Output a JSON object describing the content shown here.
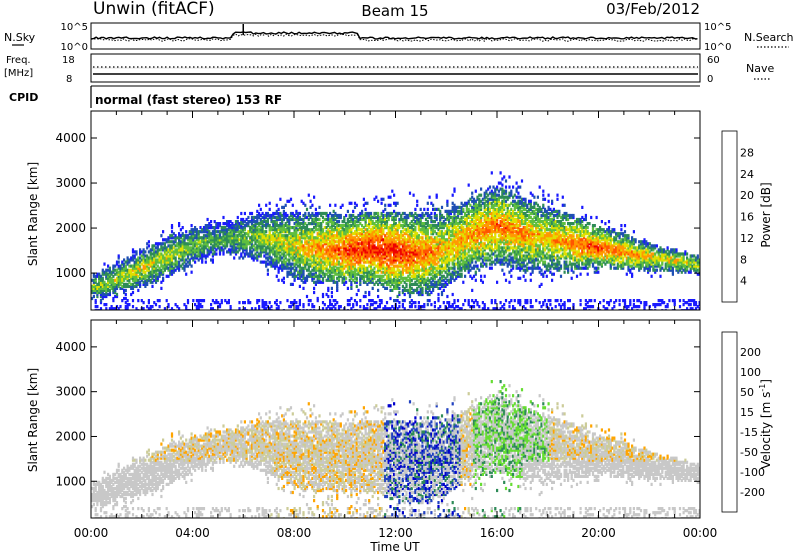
{
  "header": {
    "station": "Unwin (fitACF)",
    "beam": "Beam 15",
    "date": "03/Feb/2012"
  },
  "top_panels": {
    "nsky_label": "N.Sky",
    "nsearch_label": "N.Search",
    "noise_ticks": [
      "10^5",
      "10^0"
    ],
    "freq_label_1": "Freq.",
    "freq_label_2": "[MHz]",
    "freq_ticks": [
      "18",
      "8"
    ],
    "nave_label": "Nave",
    "nave_ticks": [
      "60",
      "0"
    ],
    "cpid_label": "CPID",
    "cpid_text": "normal (fast stereo) 153 RF"
  },
  "colors": {
    "power_scale": [
      "#1a1aff",
      "#1f4fb4",
      "#2e8b57",
      "#5fbf3f",
      "#e0e000",
      "#ff9900",
      "#ff5500",
      "#ee0000"
    ],
    "velocity_scale": [
      "#ff0000",
      "#ff6600",
      "#ffa500",
      "#cccc99",
      "#c8c8c8",
      "#66dd33",
      "#2e8b57",
      "#2040c0",
      "#0000cc"
    ]
  },
  "chart_data": [
    {
      "type": "heatmap",
      "panel": "power",
      "ylabel": "Slant Range [km]",
      "ylim": [
        180,
        4600
      ],
      "yticks": [
        1000,
        2000,
        3000,
        4000
      ],
      "x_ticks": [
        "00:00",
        "04:00",
        "08:00",
        "12:00",
        "16:00",
        "20:00",
        "00:00"
      ],
      "xlim_hours": [
        0,
        24
      ],
      "colorbar": {
        "label": "Power [dB]",
        "ticks": [
          "4",
          "8",
          "12",
          "16",
          "20",
          "24",
          "28"
        ],
        "range": [
          0,
          30
        ]
      },
      "echo_band": {
        "hours": [
          0,
          1,
          2,
          3,
          4,
          5,
          6,
          7,
          8,
          9,
          10,
          11,
          12,
          13,
          14,
          15,
          16,
          17,
          18,
          19,
          20,
          21,
          22,
          23,
          24
        ],
        "center_km": [
          700,
          900,
          1150,
          1400,
          1650,
          1800,
          1850,
          1800,
          1650,
          1600,
          1550,
          1600,
          1500,
          1450,
          1600,
          1900,
          2100,
          1900,
          1800,
          1700,
          1600,
          1500,
          1400,
          1300,
          1200
        ],
        "halfwidth_km": [
          250,
          350,
          400,
          450,
          400,
          350,
          400,
          600,
          750,
          800,
          750,
          800,
          900,
          900,
          850,
          800,
          850,
          800,
          700,
          600,
          450,
          400,
          300,
          250,
          200
        ],
        "peak_power_db": [
          14,
          16,
          18,
          16,
          14,
          12,
          14,
          16,
          18,
          22,
          26,
          28,
          28,
          24,
          20,
          22,
          24,
          22,
          20,
          24,
          26,
          22,
          20,
          18,
          16
        ]
      }
    },
    {
      "type": "heatmap",
      "panel": "velocity",
      "ylabel": "Slant Range [km]",
      "ylim": [
        180,
        4600
      ],
      "yticks": [
        1000,
        2000,
        3000,
        4000
      ],
      "x_ticks": [
        "00:00",
        "04:00",
        "08:00",
        "12:00",
        "16:00",
        "20:00",
        "00:00"
      ],
      "xlabel": "Time UT",
      "xlim_hours": [
        0,
        24
      ],
      "colorbar": {
        "label": "Velocity [m s",
        "label_sup": "-1",
        "label_end": "]",
        "ticks": [
          "200",
          "100",
          "50",
          "15",
          "-15",
          "-50",
          "-100",
          "-200"
        ],
        "range": [
          -250,
          250
        ]
      },
      "ground_scatter_color": "#c8c8c8"
    }
  ]
}
